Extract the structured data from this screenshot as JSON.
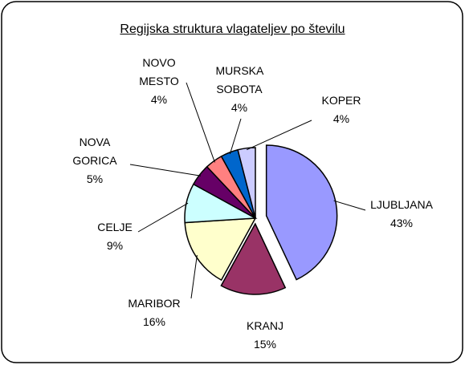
{
  "chart_data": {
    "type": "pie",
    "title": "Regijska struktura vlagateljev po številu",
    "categories": [
      "LJUBLJANA",
      "KRANJ",
      "MARIBOR",
      "CELJE",
      "NOVA GORICA",
      "NOVO MESTO",
      "MURSKA SOBOTA",
      "KOPER"
    ],
    "values": [
      43,
      15,
      16,
      9,
      5,
      4,
      4,
      4
    ],
    "value_labels": [
      "43%",
      "15%",
      "16%",
      "9%",
      "5%",
      "4%",
      "4%",
      "4%"
    ],
    "colors": [
      "#9999ff",
      "#993366",
      "#ffffcc",
      "#ccffff",
      "#660066",
      "#ff8080",
      "#0066cc",
      "#ccccff"
    ]
  }
}
